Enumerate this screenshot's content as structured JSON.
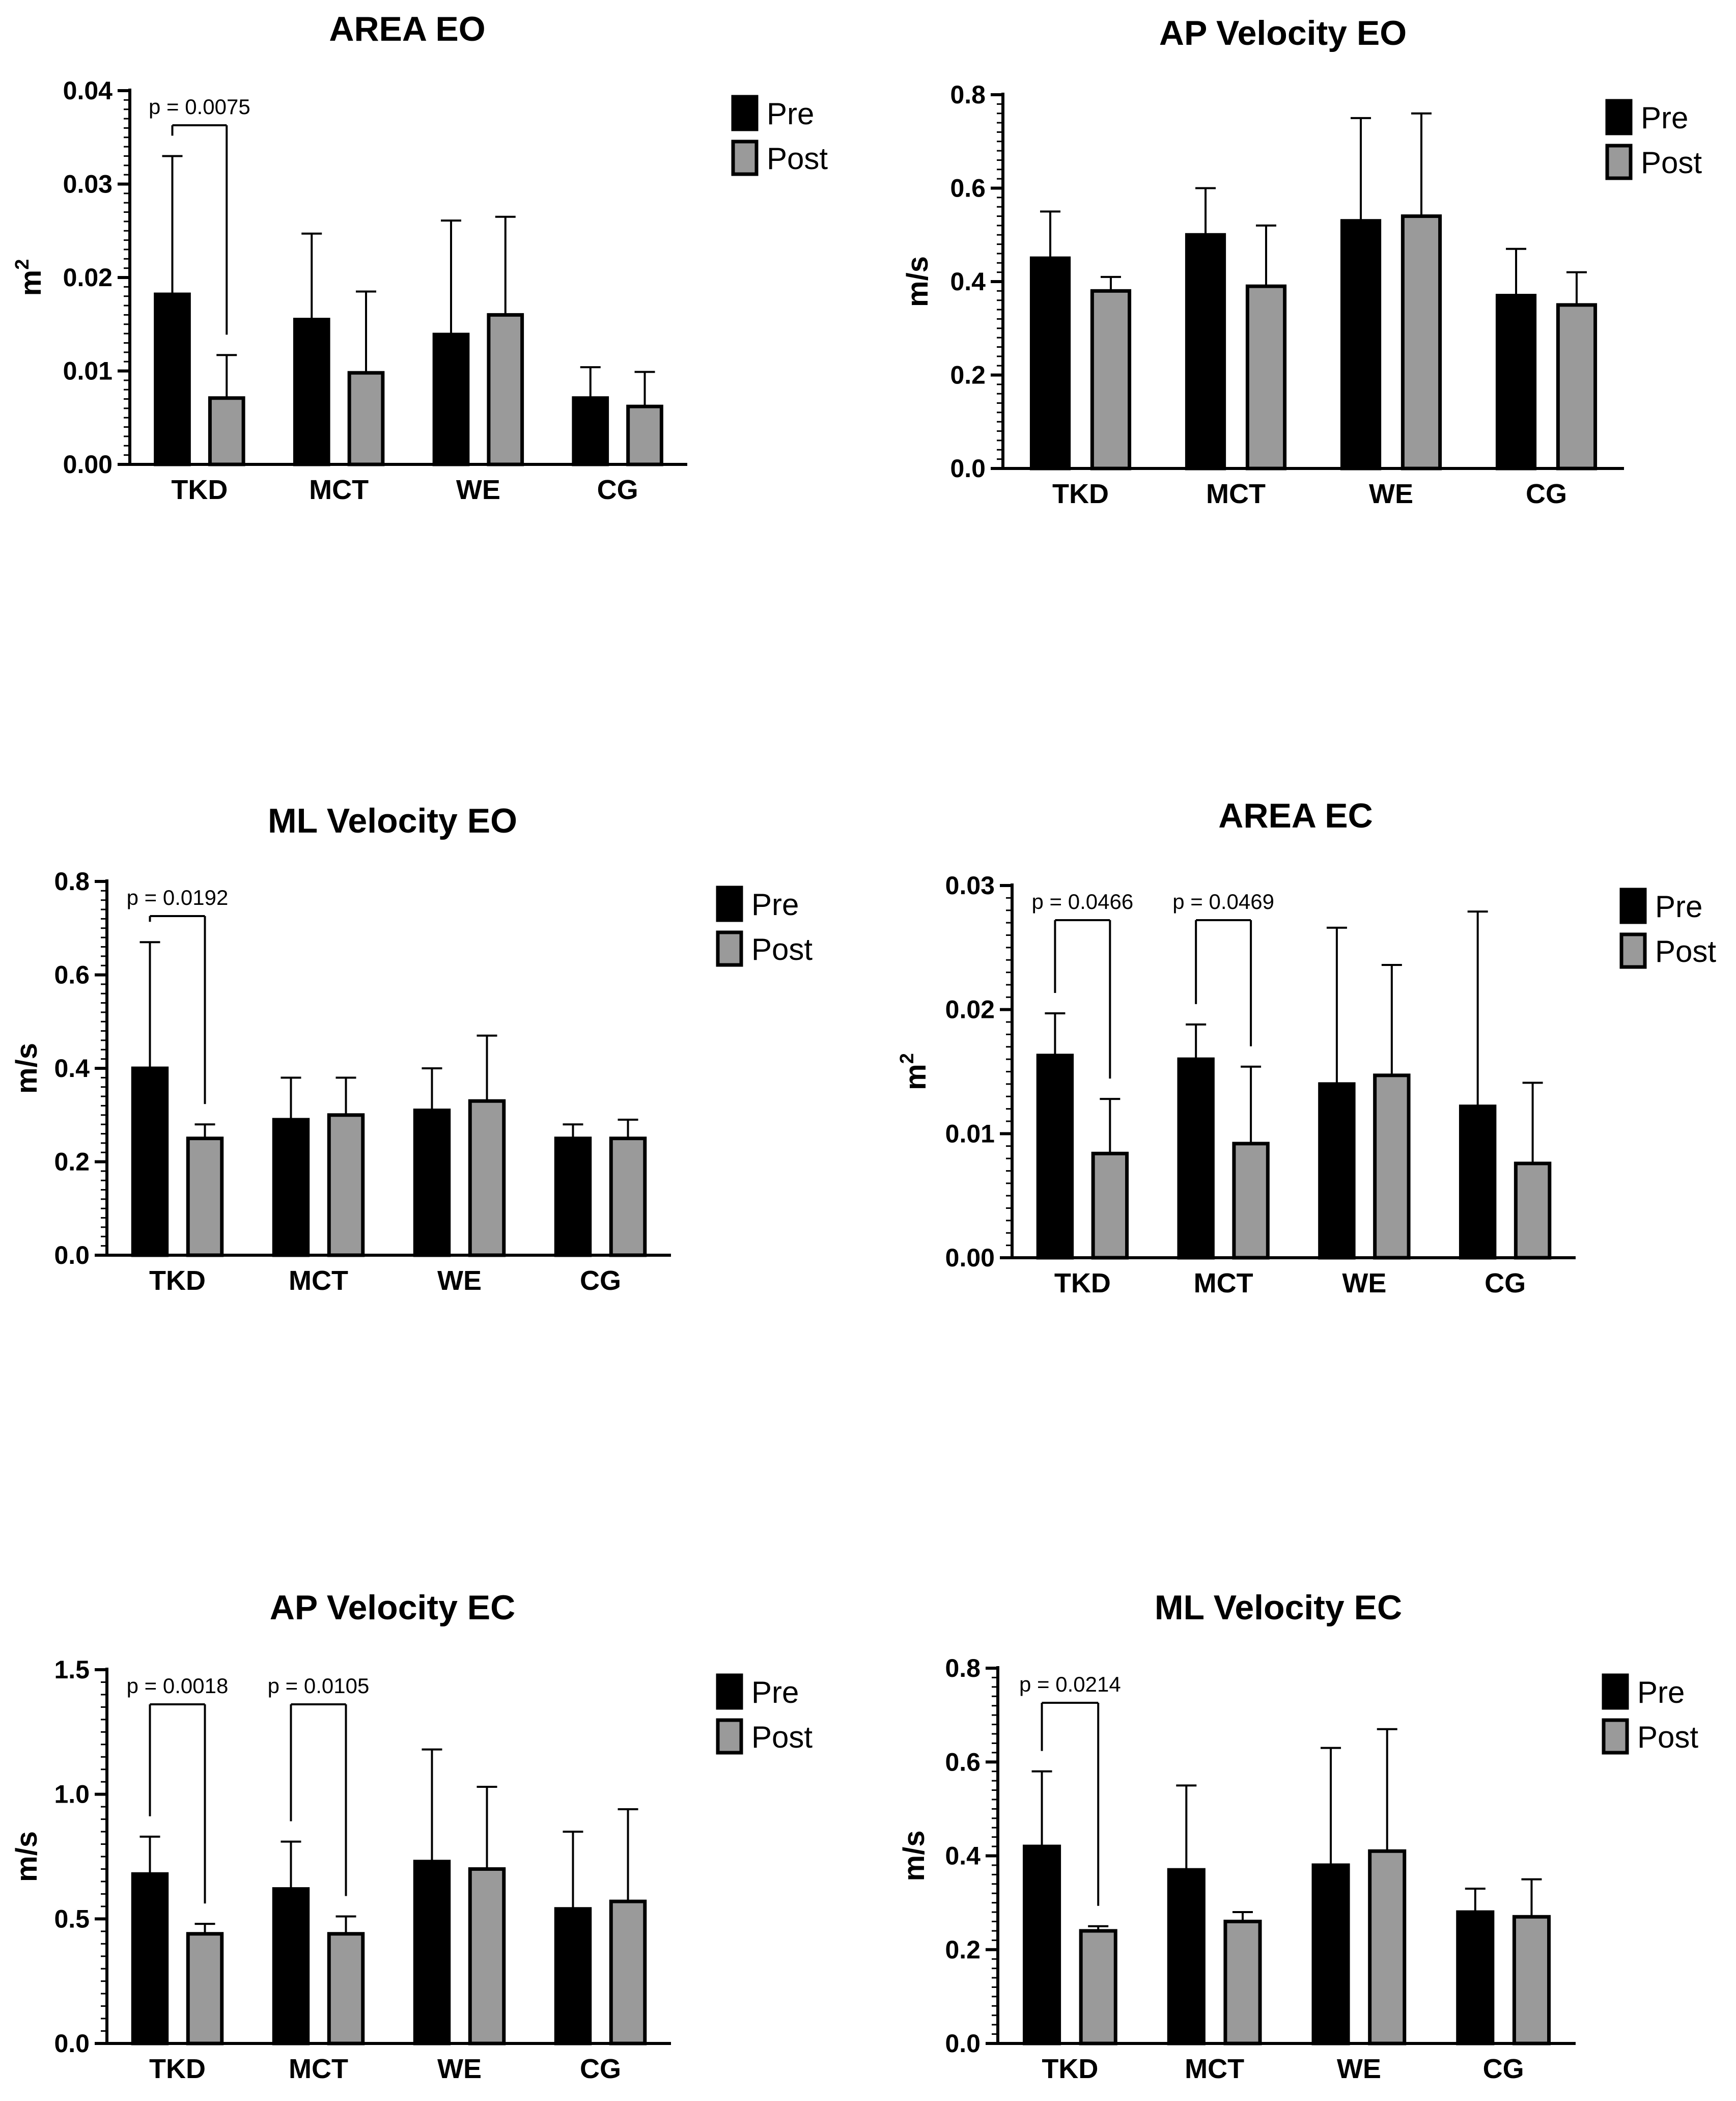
{
  "colors": {
    "pre": "#000000",
    "post": "#9a9a9a",
    "axis": "#000000",
    "background": "#ffffff"
  },
  "chart_data": [
    {
      "type": "bar",
      "title": "AREA EO",
      "xlabel": "",
      "ylabel": "m",
      "ylabel_sup": "2",
      "ylim": [
        0,
        0.04
      ],
      "yticks": [
        0,
        0.01,
        0.02,
        0.03,
        0.04
      ],
      "ytick_labels": [
        "0.00",
        "0.01",
        "0.02",
        "0.03",
        "0.04"
      ],
      "categories": [
        "TKD",
        "MCT",
        "WE",
        "CG"
      ],
      "series": [
        {
          "name": "Pre",
          "values": [
            0.0182,
            0.0155,
            0.0139,
            0.0071
          ],
          "errors": [
            0.0148,
            0.0092,
            0.0122,
            0.0033
          ]
        },
        {
          "name": "Post",
          "values": [
            0.0071,
            0.0098,
            0.016,
            0.0062
          ],
          "errors": [
            0.0046,
            0.0087,
            0.0105,
            0.0037
          ]
        }
      ],
      "legend": [
        "Pre",
        "Post"
      ],
      "annotations": [
        {
          "text": "p = 0.0075",
          "category": 0
        }
      ]
    },
    {
      "type": "bar",
      "title": "AP Velocity EO",
      "xlabel": "",
      "ylabel": "m/s",
      "ylabel_sup": "",
      "ylim": [
        0,
        0.8
      ],
      "yticks": [
        0,
        0.2,
        0.4,
        0.6,
        0.8
      ],
      "ytick_labels": [
        "0.0",
        "0.2",
        "0.4",
        "0.6",
        "0.8"
      ],
      "categories": [
        "TKD",
        "MCT",
        "WE",
        "CG"
      ],
      "series": [
        {
          "name": "Pre",
          "values": [
            0.45,
            0.5,
            0.53,
            0.37
          ],
          "errors": [
            0.1,
            0.1,
            0.22,
            0.1
          ]
        },
        {
          "name": "Post",
          "values": [
            0.38,
            0.39,
            0.54,
            0.35
          ],
          "errors": [
            0.03,
            0.13,
            0.22,
            0.07
          ]
        }
      ],
      "legend": [
        "Pre",
        "Post"
      ],
      "annotations": []
    },
    {
      "type": "bar",
      "title": "ML Velocity  EO",
      "xlabel": "",
      "ylabel": "m/s",
      "ylabel_sup": "",
      "ylim": [
        0,
        0.8
      ],
      "yticks": [
        0,
        0.2,
        0.4,
        0.6,
        0.8
      ],
      "ytick_labels": [
        "0.0",
        "0.2",
        "0.4",
        "0.6",
        "0.8"
      ],
      "categories": [
        "TKD",
        "MCT",
        "WE",
        "CG"
      ],
      "series": [
        {
          "name": "Pre",
          "values": [
            0.4,
            0.29,
            0.31,
            0.25
          ],
          "errors": [
            0.27,
            0.09,
            0.09,
            0.03
          ]
        },
        {
          "name": "Post",
          "values": [
            0.25,
            0.3,
            0.33,
            0.25
          ],
          "errors": [
            0.03,
            0.08,
            0.14,
            0.04
          ]
        }
      ],
      "legend": [
        "Pre",
        "Post"
      ],
      "annotations": [
        {
          "text": "p = 0.0192",
          "category": 0
        }
      ]
    },
    {
      "type": "bar",
      "title": "AREA EC",
      "xlabel": "",
      "ylabel": "m",
      "ylabel_sup": "2",
      "ylim": [
        0,
        0.03
      ],
      "yticks": [
        0,
        0.01,
        0.02,
        0.03
      ],
      "ytick_labels": [
        "0.00",
        "0.01",
        "0.02",
        "0.03"
      ],
      "categories": [
        "TKD",
        "MCT",
        "WE",
        "CG"
      ],
      "series": [
        {
          "name": "Pre",
          "values": [
            0.0163,
            0.016,
            0.014,
            0.0122
          ],
          "errors": [
            0.0034,
            0.0028,
            0.0126,
            0.0157
          ]
        },
        {
          "name": "Post",
          "values": [
            0.0084,
            0.0092,
            0.0147,
            0.0076
          ],
          "errors": [
            0.0044,
            0.0062,
            0.0089,
            0.0065
          ]
        }
      ],
      "legend": [
        "Pre",
        "Post"
      ],
      "annotations": [
        {
          "text": "p = 0.0466",
          "category": 0
        },
        {
          "text": "p = 0.0469",
          "category": 1
        }
      ]
    },
    {
      "type": "bar",
      "title": "AP Velocity EC",
      "xlabel": "",
      "ylabel": "m/s",
      "ylabel_sup": "",
      "ylim": [
        0,
        1.5
      ],
      "yticks": [
        0,
        0.5,
        1.0,
        1.5
      ],
      "ytick_labels": [
        "0.0",
        "0.5",
        "1.0",
        "1.5"
      ],
      "categories": [
        "TKD",
        "MCT",
        "WE",
        "CG"
      ],
      "series": [
        {
          "name": "Pre",
          "values": [
            0.68,
            0.62,
            0.73,
            0.54
          ],
          "errors": [
            0.15,
            0.19,
            0.45,
            0.31
          ]
        },
        {
          "name": "Post",
          "values": [
            0.44,
            0.44,
            0.7,
            0.57
          ],
          "errors": [
            0.04,
            0.07,
            0.33,
            0.37
          ]
        }
      ],
      "legend": [
        "Pre",
        "Post"
      ],
      "annotations": [
        {
          "text": "p = 0.0018",
          "category": 0
        },
        {
          "text": "p = 0.0105",
          "category": 1
        }
      ]
    },
    {
      "type": "bar",
      "title": "ML Velocity  EC",
      "xlabel": "",
      "ylabel": "m/s",
      "ylabel_sup": "",
      "ylim": [
        0,
        0.8
      ],
      "yticks": [
        0,
        0.2,
        0.4,
        0.6,
        0.8
      ],
      "ytick_labels": [
        "0.0",
        "0.2",
        "0.4",
        "0.6",
        "0.8"
      ],
      "categories": [
        "TKD",
        "MCT",
        "WE",
        "CG"
      ],
      "series": [
        {
          "name": "Pre",
          "values": [
            0.42,
            0.37,
            0.38,
            0.28
          ],
          "errors": [
            0.16,
            0.18,
            0.25,
            0.05
          ]
        },
        {
          "name": "Post",
          "values": [
            0.24,
            0.26,
            0.41,
            0.27
          ],
          "errors": [
            0.01,
            0.02,
            0.26,
            0.08
          ]
        }
      ],
      "legend": [
        "Pre",
        "Post"
      ],
      "annotations": [
        {
          "text": "p = 0.0214",
          "category": 0
        }
      ]
    }
  ]
}
